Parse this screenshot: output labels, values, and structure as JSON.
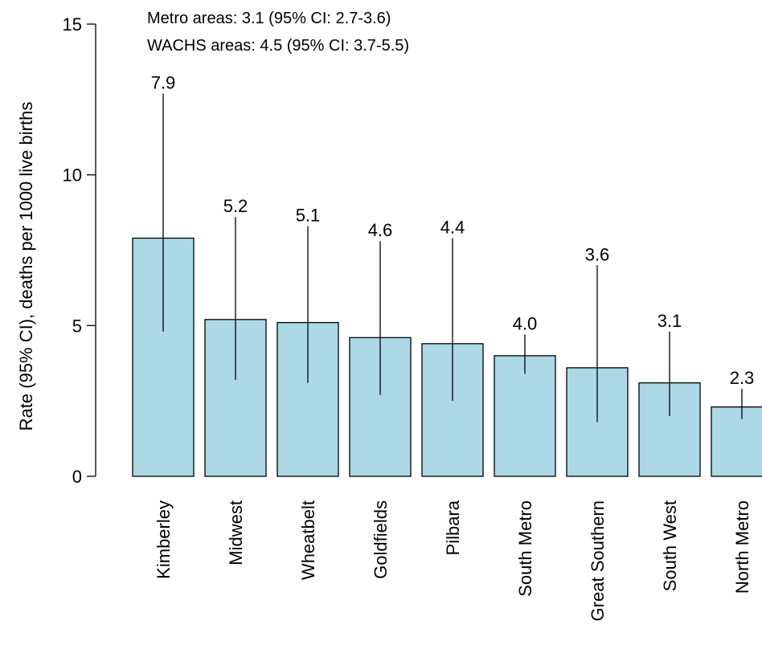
{
  "chart_data": {
    "type": "bar",
    "categories": [
      "Kimberley",
      "Midwest",
      "Wheatbelt",
      "Goldfields",
      "Pilbara",
      "South Metro",
      "Great Southern",
      "South West",
      "North Metro"
    ],
    "values": [
      7.9,
      5.2,
      5.1,
      4.6,
      4.4,
      4.0,
      3.6,
      3.1,
      2.3
    ],
    "value_labels": [
      "7.9",
      "5.2",
      "5.1",
      "4.6",
      "4.4",
      "4.0",
      "3.6",
      "3.1",
      "2.3"
    ],
    "ci_lower": [
      4.8,
      3.2,
      3.1,
      2.7,
      2.5,
      3.4,
      1.8,
      2.0,
      1.9
    ],
    "ci_upper": [
      12.7,
      8.6,
      8.3,
      7.8,
      7.9,
      4.7,
      7.0,
      4.8,
      2.9
    ],
    "ylabel": "Rate (95% CI), deaths per 1000 live births",
    "xlabel": "",
    "ylim": [
      0,
      15
    ],
    "yticks": [
      0,
      5,
      10,
      15
    ],
    "ytick_labels": [
      "0",
      "5",
      "10",
      "15"
    ],
    "annotations": [
      "Metro areas: 3.1 (95% CI: 2.7-3.6)",
      "WACHS areas: 4.5 (95% CI: 3.7-5.5)"
    ],
    "bar_color": "#ADD8E6",
    "grid": false,
    "legend": "none"
  }
}
